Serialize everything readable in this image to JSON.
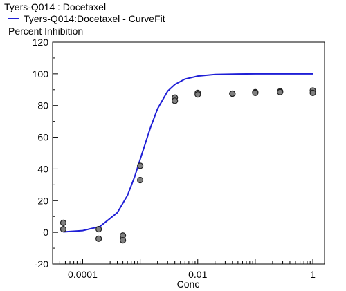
{
  "chart_data": {
    "type": "scatter",
    "title": "Tyers-Q014  :  Docetaxel",
    "ylabel": "Percent  Inhibition",
    "xlabel": "Conc",
    "x_scale": "log",
    "xlim": [
      3e-05,
      1.6
    ],
    "ylim": [
      -20,
      120
    ],
    "y_ticks": [
      -20,
      0,
      20,
      40,
      60,
      80,
      100,
      120
    ],
    "x_ticks": [
      {
        "value": 0.0001,
        "label": "0.0001"
      },
      {
        "value": 0.01,
        "label": "0.01"
      },
      {
        "value": 1,
        "label": "1"
      }
    ],
    "grid": false,
    "legend_position": "top-left",
    "series": [
      {
        "kind": "points",
        "color": "#808080",
        "points": [
          {
            "x": 4.6e-05,
            "y": 6
          },
          {
            "x": 4.6e-05,
            "y": 2
          },
          {
            "x": 0.00019,
            "y": 2
          },
          {
            "x": 0.00019,
            "y": -4
          },
          {
            "x": 0.0005,
            "y": -2
          },
          {
            "x": 0.0005,
            "y": -5
          },
          {
            "x": 0.001,
            "y": 42
          },
          {
            "x": 0.001,
            "y": 33
          },
          {
            "x": 0.004,
            "y": 85
          },
          {
            "x": 0.004,
            "y": 83
          },
          {
            "x": 0.01,
            "y": 88
          },
          {
            "x": 0.01,
            "y": 87
          },
          {
            "x": 0.04,
            "y": 87.5
          },
          {
            "x": 0.04,
            "y": 87.5
          },
          {
            "x": 0.1,
            "y": 88.5
          },
          {
            "x": 0.1,
            "y": 88
          },
          {
            "x": 0.27,
            "y": 89
          },
          {
            "x": 0.27,
            "y": 88.5
          },
          {
            "x": 1,
            "y": 89.5
          },
          {
            "x": 1,
            "y": 88
          }
        ]
      },
      {
        "kind": "curve",
        "name": "Tyers-Q014:Docetaxel - CurveFit",
        "color": "#1f1fd6",
        "x": [
          4.6e-05,
          0.0001,
          0.0002,
          0.0004,
          0.0006,
          0.0008,
          0.001,
          0.0015,
          0.002,
          0.003,
          0.004,
          0.006,
          0.01,
          0.02,
          0.05,
          0.1,
          1
        ],
        "y": [
          0.3,
          1.1,
          3.7,
          12.4,
          23.3,
          35.1,
          46.1,
          65.9,
          77.9,
          89.1,
          93.3,
          96.7,
          98.6,
          99.6,
          99.9,
          100,
          100
        ]
      }
    ]
  }
}
